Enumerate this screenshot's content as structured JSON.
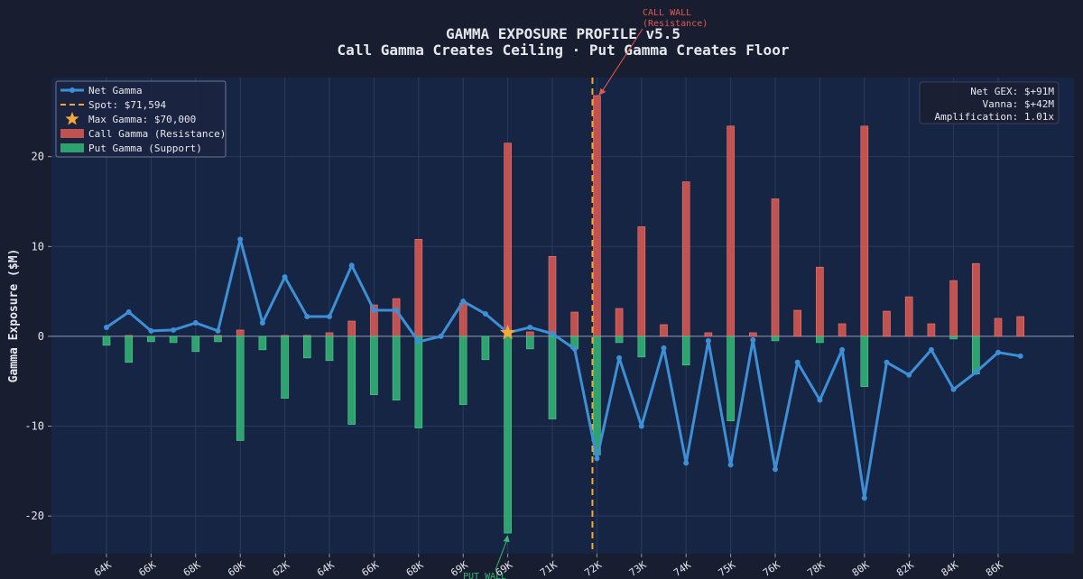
{
  "colors": {
    "background": "#191d30",
    "plot_bg": "#172544",
    "call": "#e05a52",
    "put": "#33b877",
    "net": "#3d8fd6",
    "spot": "#f2a93b",
    "star": "#f2a93b",
    "text": "#e6e8ee",
    "grid": "#2a3a5c"
  },
  "chart_data": {
    "type": "bar",
    "title": "GAMMA EXPOSURE PROFILE v5.5",
    "subtitle": "Call Gamma Creates Ceiling · Put Gamma Creates Floor",
    "ylabel": "Gamma Exposure ($M)",
    "ylim": [
      -24.2,
      28.8
    ],
    "yticks": [
      -20,
      -10,
      0,
      10,
      20
    ],
    "xtick_labels": [
      "64K",
      "66K",
      "68K",
      "60K",
      "62K",
      "64K",
      "66K",
      "68K",
      "69K",
      "69K",
      "71K",
      "72K",
      "73K",
      "74K",
      "75K",
      "76K",
      "78K",
      "80K",
      "82K",
      "84K",
      "86K"
    ],
    "call_gamma": [
      0,
      0.1,
      0,
      0,
      0,
      0.1,
      0.7,
      0,
      0.1,
      0.1,
      0.4,
      1.7,
      3.5,
      4.2,
      10.8,
      0,
      3.7,
      0,
      21.5,
      0.5,
      8.9,
      2.7,
      26.8,
      3.1,
      12.2,
      1.3,
      17.2,
      0.4,
      23.4,
      0.4,
      15.3,
      2.9,
      7.7,
      1.4,
      23.4,
      2.8,
      4.4,
      1.4,
      6.2,
      8.1,
      2,
      2.2
    ],
    "put_gamma": [
      -1,
      -2.9,
      -0.6,
      -0.7,
      -1.7,
      -0.6,
      -11.6,
      -1.5,
      -6.9,
      -2.4,
      -2.7,
      -9.8,
      -6.5,
      -7.1,
      -10.2,
      0,
      -7.6,
      -2.6,
      -21.9,
      -1.4,
      -9.2,
      -1.4,
      -13.2,
      -0.7,
      -2.3,
      0,
      -3.2,
      0,
      -9.4,
      0,
      -0.5,
      0,
      -0.7,
      0,
      -5.6,
      0,
      0,
      0,
      -0.3,
      -4.2,
      0,
      0
    ],
    "net_gamma": [
      1,
      2.7,
      0.6,
      0.7,
      1.5,
      0.6,
      10.8,
      1.5,
      6.6,
      2.2,
      2.2,
      7.9,
      2.9,
      2.9,
      -0.6,
      0,
      3.9,
      2.5,
      0.4,
      1,
      0.3,
      -1.4,
      -13.6,
      -2.4,
      -10,
      -1.3,
      -14.1,
      -0.5,
      -14.3,
      -0.4,
      -14.8,
      -2.9,
      -7.1,
      -1.5,
      -18,
      -2.9,
      -4.3,
      -1.5,
      -5.9,
      -4,
      -1.8,
      -2.2
    ],
    "spot_value": 71594,
    "max_gamma_strike": 70000,
    "max_gamma_index": 18,
    "spot_index_pos": 21.8,
    "legend": {
      "net": "Net Gamma",
      "spot": "Spot: $71,594",
      "max": "Max Gamma: $70,000",
      "call": "Call Gamma (Resistance)",
      "put": "Put Gamma (Support)"
    },
    "annotations": {
      "call_wall_1": "CALL WALL",
      "call_wall_2": "(Resistance)",
      "put_wall": "PUT WALL",
      "call_wall_index": 22,
      "call_wall_value": 26.8,
      "put_wall_index": 18,
      "put_wall_value": -21.9
    },
    "stats": {
      "net_gex": "Net GEX: $+91M",
      "vanna": "Vanna: $+42M",
      "amplification": "Amplification: 1.01x"
    }
  }
}
